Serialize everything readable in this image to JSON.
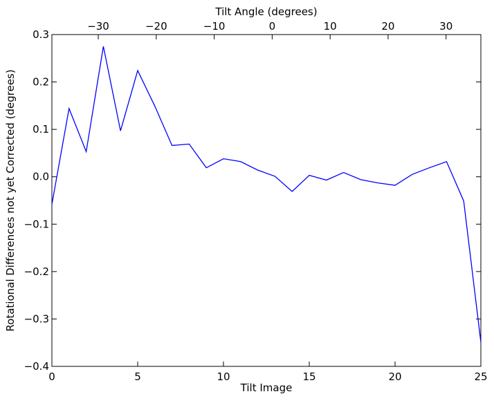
{
  "chart_data": {
    "type": "line",
    "xlabel": "Tilt Image",
    "ylabel": "Rotational Differences not yet Corrected (degrees)",
    "top_xlabel": "Tilt Angle (degrees)",
    "xlim": [
      0,
      25
    ],
    "ylim": [
      -0.4,
      0.3
    ],
    "top_xlim": [
      -38,
      36
    ],
    "grid": false,
    "x_ticks": [
      0,
      5,
      10,
      15,
      20,
      25
    ],
    "x_tick_labels": [
      "0",
      "5",
      "10",
      "15",
      "20",
      "25"
    ],
    "y_ticks": [
      0.3,
      0.2,
      0.1,
      0.0,
      -0.1,
      -0.2,
      -0.3,
      -0.4
    ],
    "y_tick_labels": [
      "0.3",
      "0.2",
      "0.1",
      "0.0",
      "−0.1",
      "−0.2",
      "−0.3",
      "−0.4"
    ],
    "top_x_ticks": [
      -30,
      -20,
      -10,
      0,
      10,
      20,
      30
    ],
    "top_x_tick_labels": [
      "−30",
      "−20",
      "−10",
      "0",
      "10",
      "20",
      "30"
    ],
    "series": [
      {
        "color": "#0000ff",
        "x": [
          0,
          1,
          2,
          3,
          4,
          5,
          6,
          7,
          8,
          9,
          10,
          11,
          12,
          13,
          14,
          15,
          16,
          17,
          18,
          19,
          20,
          21,
          22,
          23,
          24,
          25
        ],
        "y": [
          -0.058,
          0.144,
          0.053,
          0.275,
          0.097,
          0.224,
          0.149,
          0.066,
          0.069,
          0.019,
          0.038,
          0.032,
          0.014,
          0.001,
          -0.031,
          0.003,
          -0.007,
          0.009,
          -0.006,
          -0.013,
          -0.018,
          0.005,
          0.019,
          0.032,
          -0.051,
          -0.349
        ]
      }
    ]
  }
}
